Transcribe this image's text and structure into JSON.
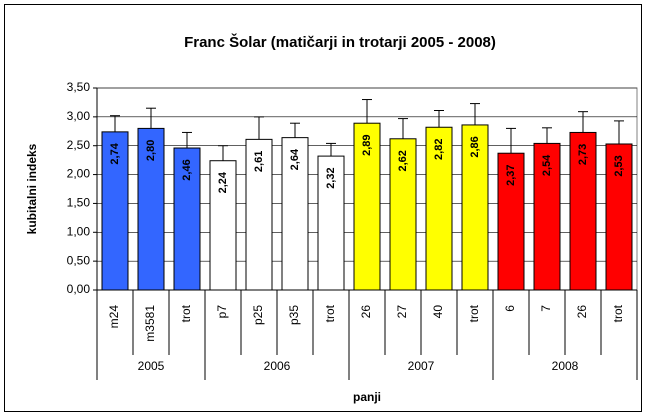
{
  "chart_data": {
    "type": "bar",
    "title": "Franc Šolar (matičarji in trotarji 2005 - 2008)",
    "y_label": "kubitalni indeks",
    "x_label": "panji",
    "ylim": [
      0,
      3.5
    ],
    "yticks": [
      {
        "value": 0,
        "label": "0,00"
      },
      {
        "value": 0.5,
        "label": "0,50"
      },
      {
        "value": 1,
        "label": "1,00"
      },
      {
        "value": 1.5,
        "label": "1,50"
      },
      {
        "value": 2,
        "label": "2,00"
      },
      {
        "value": 2.5,
        "label": "2,50"
      },
      {
        "value": 3,
        "label": "3,00"
      },
      {
        "value": 3.5,
        "label": "3,50"
      }
    ],
    "groups": [
      {
        "name": "2005",
        "color": "#3366ff",
        "categories": [
          "m24",
          "m3581",
          "trot"
        ],
        "values": [
          2.74,
          2.8,
          2.46
        ],
        "value_labels": [
          "2,74",
          "2,80",
          "2,46"
        ],
        "errors": [
          0.28,
          0.35,
          0.27
        ]
      },
      {
        "name": "2006",
        "color": "#ffffff",
        "categories": [
          "p7",
          "p25",
          "p35",
          "trot"
        ],
        "values": [
          2.24,
          2.61,
          2.64,
          2.32
        ],
        "value_labels": [
          "2,24",
          "2,61",
          "2,64",
          "2,32"
        ],
        "errors": [
          0.26,
          0.39,
          0.25,
          0.22
        ]
      },
      {
        "name": "2007",
        "color": "#ffff00",
        "categories": [
          "26",
          "27",
          "40",
          "trot"
        ],
        "values": [
          2.89,
          2.62,
          2.82,
          2.86
        ],
        "value_labels": [
          "2,89",
          "2,62",
          "2,82",
          "2,86"
        ],
        "errors": [
          0.41,
          0.35,
          0.29,
          0.37
        ]
      },
      {
        "name": "2008",
        "color": "#ff0000",
        "categories": [
          "6",
          "7",
          "26",
          "trot"
        ],
        "values": [
          2.37,
          2.54,
          2.73,
          2.53
        ],
        "value_labels": [
          "2,37",
          "2,54",
          "2,73",
          "2,53"
        ],
        "errors": [
          0.43,
          0.27,
          0.36,
          0.4
        ]
      }
    ]
  }
}
